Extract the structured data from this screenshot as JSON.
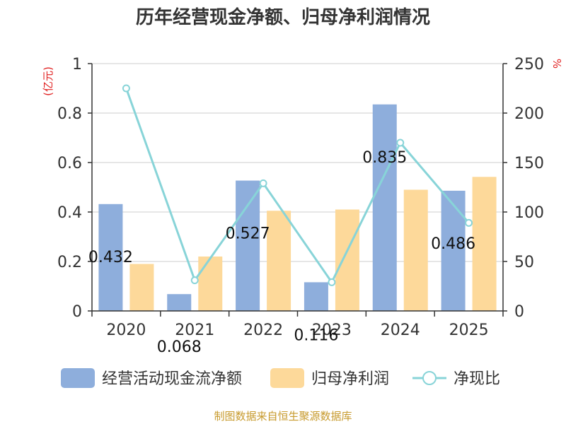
{
  "title": "历年经营现金净额、归母净利润情况",
  "source": "制图数据来自恒生聚源数据库",
  "colors": {
    "cash_flow_bar": "#8eaedc",
    "net_profit_bar": "#fdd99a",
    "ratio_line": "#88d4d8",
    "axis_unit": "#e02020",
    "grid": "#cccccc",
    "axis": "#333333",
    "source": "#c79a2c"
  },
  "chart_data": {
    "type": "bar",
    "categories": [
      "2020",
      "2021",
      "2022",
      "2023",
      "2024",
      "2025"
    ],
    "y_left": {
      "unit": "(亿元)",
      "ylim": [
        0,
        1
      ],
      "ticks": [
        "0",
        "0.2",
        "0.4",
        "0.6",
        "0.8",
        "1"
      ]
    },
    "y_right": {
      "unit": "%",
      "ylim": [
        0,
        250
      ],
      "ticks": [
        "0",
        "50",
        "100",
        "150",
        "200",
        "250"
      ]
    },
    "grid": true,
    "legend_position": "bottom",
    "series": [
      {
        "name": "经营活动现金流净额",
        "kind": "bar",
        "axis": "left",
        "values": [
          0.432,
          0.068,
          0.527,
          0.116,
          0.835,
          0.486
        ],
        "labels": [
          "0.432",
          "0.068",
          "0.527",
          "0.116",
          "0.835",
          "0.486"
        ]
      },
      {
        "name": "归母净利润",
        "kind": "bar",
        "axis": "left",
        "values": [
          0.19,
          0.22,
          0.405,
          0.41,
          0.49,
          0.542
        ]
      },
      {
        "name": "净现比",
        "kind": "line",
        "axis": "right",
        "values": [
          225,
          31,
          129,
          29,
          170,
          89
        ]
      }
    ]
  }
}
